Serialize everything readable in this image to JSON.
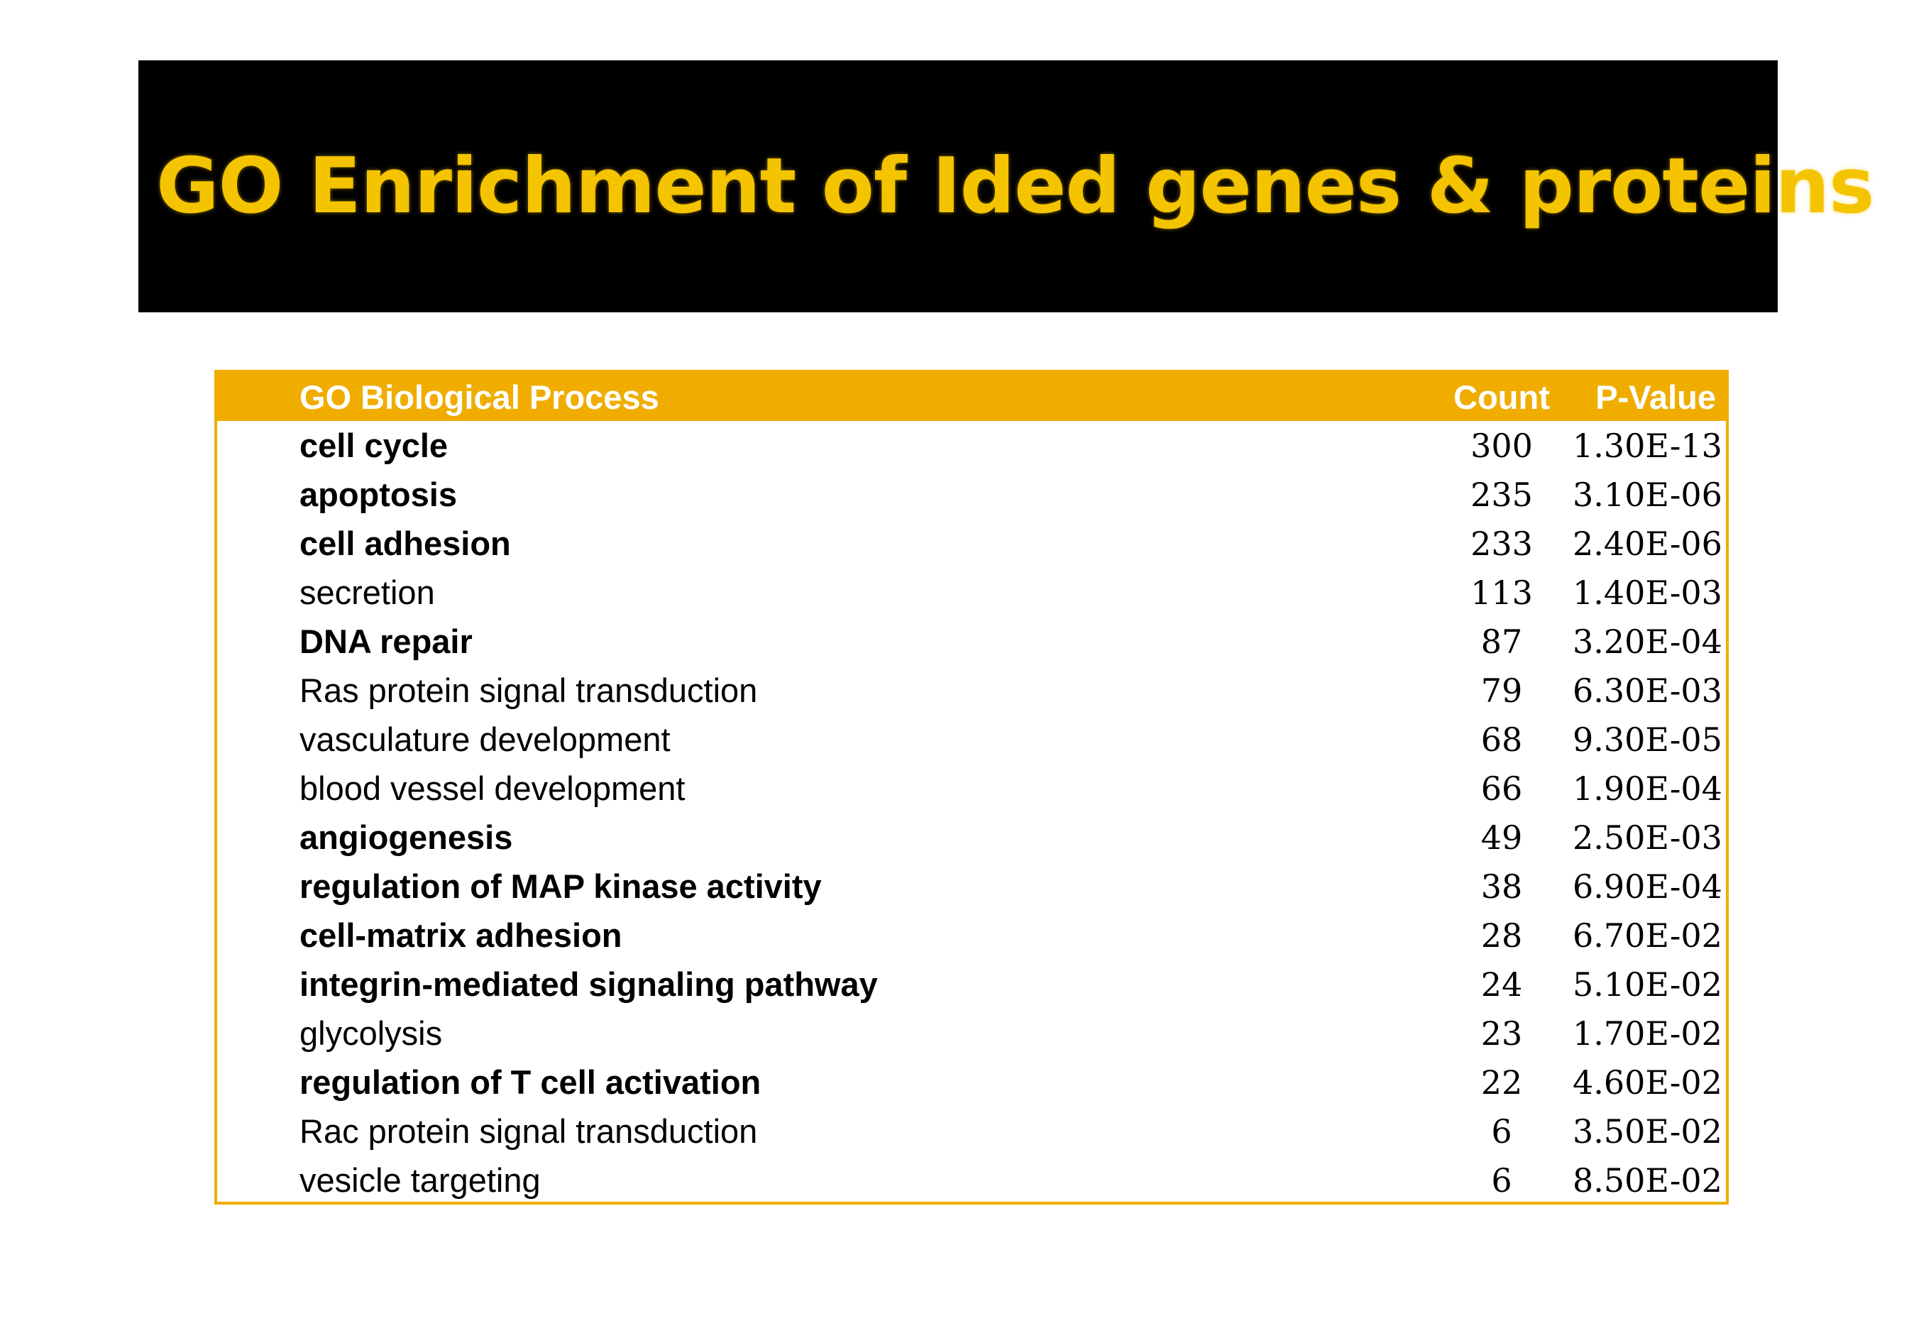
{
  "slide": {
    "title": "GO Enrichment of Ided genes & proteins"
  },
  "table": {
    "headers": {
      "process": "GO Biological Process",
      "count": "Count",
      "pvalue": "P-Value"
    },
    "rows": [
      {
        "process": "cell cycle",
        "count": "300",
        "pvalue": "1.30E-13",
        "bold": true
      },
      {
        "process": "apoptosis",
        "count": "235",
        "pvalue": "3.10E-06",
        "bold": true
      },
      {
        "process": "cell adhesion",
        "count": "233",
        "pvalue": "2.40E-06",
        "bold": true
      },
      {
        "process": "secretion",
        "count": "113",
        "pvalue": "1.40E-03",
        "bold": false
      },
      {
        "process": "DNA repair",
        "count": "87",
        "pvalue": "3.20E-04",
        "bold": true
      },
      {
        "process": "Ras protein signal transduction",
        "count": "79",
        "pvalue": "6.30E-03",
        "bold": false
      },
      {
        "process": "vasculature development",
        "count": "68",
        "pvalue": "9.30E-05",
        "bold": false
      },
      {
        "process": "blood vessel development",
        "count": "66",
        "pvalue": "1.90E-04",
        "bold": false
      },
      {
        "process": "angiogenesis",
        "count": "49",
        "pvalue": "2.50E-03",
        "bold": true
      },
      {
        "process": "regulation of MAP kinase activity",
        "count": "38",
        "pvalue": "6.90E-04",
        "bold": true
      },
      {
        "process": "cell-matrix adhesion",
        "count": "28",
        "pvalue": "6.70E-02",
        "bold": true
      },
      {
        "process": "integrin-mediated signaling pathway",
        "count": "24",
        "pvalue": "5.10E-02",
        "bold": true
      },
      {
        "process": "glycolysis",
        "count": "23",
        "pvalue": "1.70E-02",
        "bold": false
      },
      {
        "process": "regulation of T cell activation",
        "count": "22",
        "pvalue": "4.60E-02",
        "bold": true
      },
      {
        "process": "Rac protein signal transduction",
        "count": "6",
        "pvalue": "3.50E-02",
        "bold": false
      },
      {
        "process": "vesicle targeting",
        "count": "6",
        "pvalue": "8.50E-02",
        "bold": false
      }
    ]
  },
  "colors": {
    "banner_background": "#000000",
    "title_text": "#f5c400",
    "header_background": "#f0ad00",
    "header_text": "#ffffff",
    "border": "#f0ad00"
  }
}
